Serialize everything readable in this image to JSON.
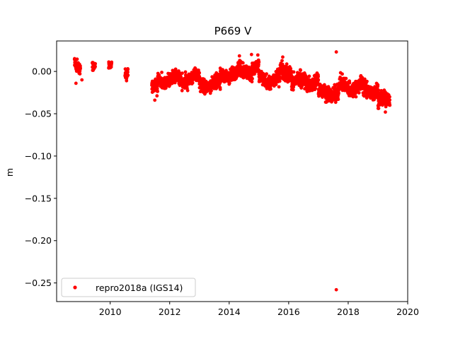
{
  "chart_data": {
    "type": "scatter",
    "title": "P669 V",
    "xlabel": "",
    "ylabel": "m",
    "xlim": [
      2008.2,
      2020.0
    ],
    "ylim": [
      -0.272,
      0.036
    ],
    "xticks": [
      2010,
      2012,
      2014,
      2016,
      2018,
      2020
    ],
    "yticks": [
      0.0,
      -0.05,
      -0.1,
      -0.15,
      -0.2,
      -0.25
    ],
    "ytick_labels": [
      "0.00",
      "−0.05",
      "−0.10",
      "−0.15",
      "−0.20",
      "−0.25"
    ],
    "grid": false,
    "legend": {
      "position": "lower-left",
      "entries": [
        "repro2018a (IGS14)"
      ]
    },
    "color": "#ff0000",
    "series": [
      {
        "name": "repro2018a (IGS14)",
        "segments": [
          {
            "x_start": 2008.8,
            "x_end": 2009.0,
            "mean": 0.006,
            "spread": 0.006
          },
          {
            "x_start": 2009.4,
            "x_end": 2009.5,
            "mean": 0.003,
            "spread": 0.004
          },
          {
            "x_start": 2009.95,
            "x_end": 2010.05,
            "mean": 0.004,
            "spread": 0.004
          },
          {
            "x_start": 2010.5,
            "x_end": 2010.6,
            "mean": 0.0,
            "spread": 0.004
          },
          {
            "x_start": 2011.4,
            "x_end": 2011.6,
            "mean": -0.02,
            "spread": 0.008
          },
          {
            "x_start": 2011.6,
            "x_end": 2012.5,
            "mean": -0.01,
            "spread": 0.007
          },
          {
            "x_start": 2012.5,
            "x_end": 2013.0,
            "mean": -0.008,
            "spread": 0.007
          },
          {
            "x_start": 2013.0,
            "x_end": 2013.7,
            "mean": -0.015,
            "spread": 0.007
          },
          {
            "x_start": 2013.7,
            "x_end": 2014.3,
            "mean": -0.003,
            "spread": 0.007
          },
          {
            "x_start": 2014.3,
            "x_end": 2015.0,
            "mean": 0.002,
            "spread": 0.008
          },
          {
            "x_start": 2015.0,
            "x_end": 2015.7,
            "mean": -0.01,
            "spread": 0.007
          },
          {
            "x_start": 2015.7,
            "x_end": 2016.1,
            "mean": 0.0,
            "spread": 0.009
          },
          {
            "x_start": 2016.1,
            "x_end": 2017.0,
            "mean": -0.012,
            "spread": 0.008
          },
          {
            "x_start": 2017.0,
            "x_end": 2017.7,
            "mean": -0.025,
            "spread": 0.008
          },
          {
            "x_start": 2017.7,
            "x_end": 2018.5,
            "mean": -0.018,
            "spread": 0.008
          },
          {
            "x_start": 2018.5,
            "x_end": 2019.0,
            "mean": -0.022,
            "spread": 0.008
          },
          {
            "x_start": 2019.0,
            "x_end": 2019.4,
            "mean": -0.035,
            "spread": 0.008
          }
        ],
        "outliers": [
          {
            "x": 2017.6,
            "y": 0.023
          },
          {
            "x": 2017.6,
            "y": -0.258
          },
          {
            "x": 2008.85,
            "y": -0.014
          },
          {
            "x": 2009.05,
            "y": -0.01
          },
          {
            "x": 2010.55,
            "y": -0.011
          },
          {
            "x": 2011.5,
            "y": -0.034
          },
          {
            "x": 2014.75,
            "y": 0.02
          },
          {
            "x": 2015.8,
            "y": 0.017
          },
          {
            "x": 2019.25,
            "y": -0.048
          }
        ]
      }
    ]
  }
}
